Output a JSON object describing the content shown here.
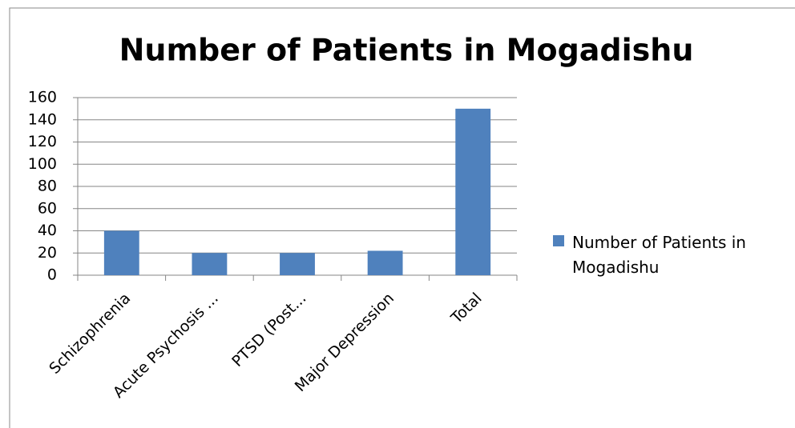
{
  "chart_data": {
    "type": "bar",
    "title": "Number of Patients in Mogadishu",
    "categories": [
      "Schizophrenia",
      "Acute Psychosis ...",
      "PTSD (Post...",
      "Major Depression",
      "Total"
    ],
    "series": [
      {
        "name": "Number of Patients in Mogadishu",
        "color": "#4f81bd",
        "values": [
          40,
          20,
          20,
          22,
          150
        ]
      }
    ],
    "ylim": [
      0,
      160
    ],
    "yticks": [
      0,
      20,
      40,
      60,
      80,
      100,
      120,
      140,
      160
    ],
    "grid": true,
    "legend": "right"
  }
}
